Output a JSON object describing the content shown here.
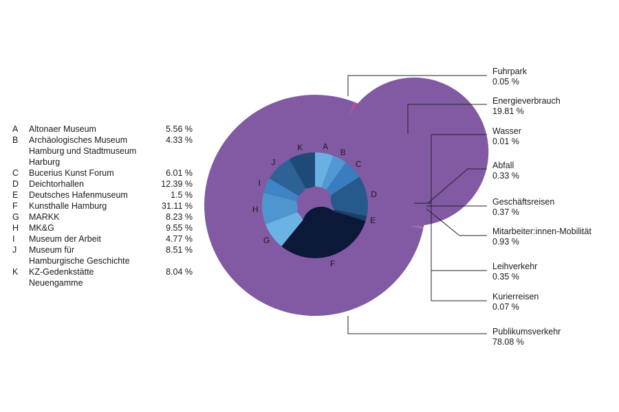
{
  "chart_data": [
    {
      "type": "pie",
      "ring": "outer",
      "slices": [
        {
          "name": "Fuhrpark",
          "value": 0.05,
          "label": "0.05 %",
          "color": "#c2468f"
        },
        {
          "name": "Energieverbrauch",
          "value": 19.81,
          "label": "19.81 %",
          "color": "#bb3b84"
        },
        {
          "name": "Wasser",
          "value": 0.01,
          "label": "0.01 %",
          "color": "#d07ab2"
        },
        {
          "name": "Abfall",
          "value": 0.33,
          "label": "0.33 %",
          "color": "#d9a0c8"
        },
        {
          "name": "Geschäftsreisen",
          "value": 0.37,
          "label": "0.37 %",
          "color": "#b23a8a"
        },
        {
          "name": "Mitarbeiter:innen-Mobilität",
          "value": 0.93,
          "label": "0.93 %",
          "color": "#7a1f63"
        },
        {
          "name": "Leihverkehr",
          "value": 0.35,
          "label": "0.35 %",
          "color": "#9c3a84"
        },
        {
          "name": "Kurierreisen",
          "value": 0.07,
          "label": "0.07 %",
          "color": "#a06fb0"
        },
        {
          "name": "Publikumsverkehr",
          "value": 78.08,
          "label": "78.08 %",
          "color": "#825aa3"
        }
      ]
    },
    {
      "type": "pie",
      "ring": "inner",
      "slices": [
        {
          "letter": "A",
          "name": "Altonaer Museum",
          "value": 5.56,
          "label": "5.56 %",
          "color": "#6ab0e0"
        },
        {
          "letter": "B",
          "name": "Archäologisches Museum\nHamburg und Stadtmuseum\nHarburg",
          "value": 4.33,
          "label": "4.33 %",
          "color": "#5299d3"
        },
        {
          "letter": "C",
          "name": "Bucerius Kunst Forum",
          "value": 6.01,
          "label": "6.01 %",
          "color": "#3a7cc0"
        },
        {
          "letter": "D",
          "name": "Deichtorhallen",
          "value": 12.39,
          "label": "12.39 %",
          "color": "#265a8c"
        },
        {
          "letter": "E",
          "name": "Deutsches Hafenmuseum",
          "value": 1.5,
          "label": "1.5 %",
          "color": "#1c3e68"
        },
        {
          "letter": "F",
          "name": "Kunsthalle Hamburg",
          "value": 31.11,
          "label": "31.11 %",
          "color": "#0b1838"
        },
        {
          "letter": "G",
          "name": "MARKK",
          "value": 8.23,
          "label": "8.23 %",
          "color": "#6ab3e4"
        },
        {
          "letter": "H",
          "name": "MK&G",
          "value": 9.55,
          "label": "9.55 %",
          "color": "#4e96cf"
        },
        {
          "letter": "I",
          "name": "Museum der Arbeit",
          "value": 4.77,
          "label": "4.77 %",
          "color": "#3f84c4"
        },
        {
          "letter": "J",
          "name": "Museum für\nHamburgische Geschichte",
          "value": 8.51,
          "label": "8.51 %",
          "color": "#2d6296"
        },
        {
          "letter": "K",
          "name": "KZ-Gedenkstätte\nNeuengamme",
          "value": 8.04,
          "label": "8.04 %",
          "color": "#1f4a78"
        }
      ]
    }
  ],
  "colors": {
    "line": "#222222",
    "background": "#ffffff"
  }
}
